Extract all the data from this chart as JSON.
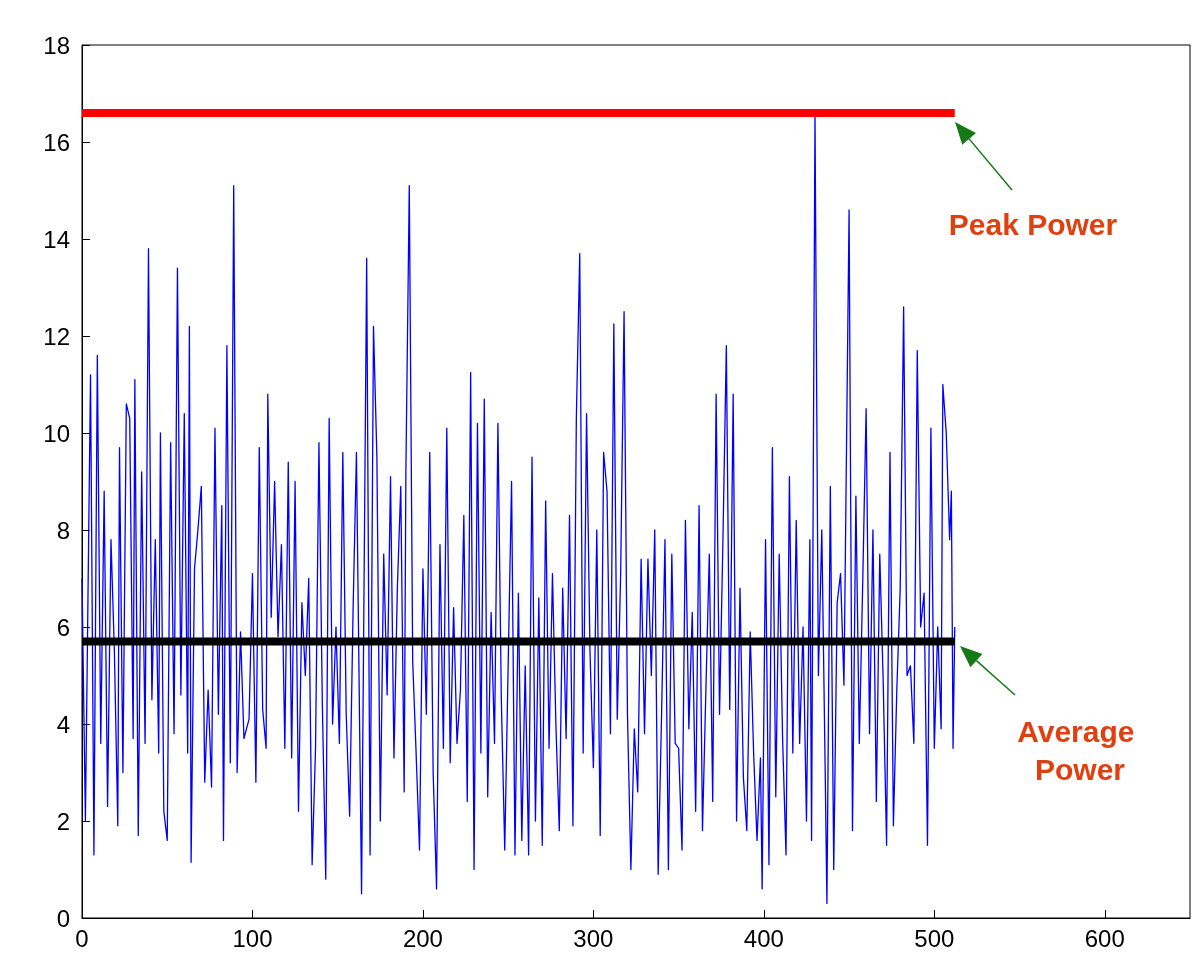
{
  "chart_data": {
    "type": "line",
    "marker": "none",
    "xlim": [
      0,
      650
    ],
    "xticks": [
      0,
      100,
      200,
      300,
      400,
      500,
      600
    ],
    "ylim": [
      0,
      18
    ],
    "yticks": [
      0,
      2,
      4,
      6,
      8,
      10,
      12,
      14,
      16,
      18
    ],
    "annotations": [
      "Peak Power",
      "Average Power"
    ],
    "series": [
      {
        "color": "#0000ff",
        "x": [
          0,
          2,
          5,
          7,
          9,
          11,
          13,
          15,
          17,
          19,
          21,
          22,
          24,
          26,
          28,
          30,
          31,
          33,
          35,
          37,
          39,
          41,
          43,
          45,
          46,
          48,
          50,
          52,
          54,
          56,
          58,
          60,
          62,
          63,
          64,
          66,
          68,
          70,
          72,
          74,
          76,
          78,
          80,
          82,
          83,
          85,
          87,
          89,
          91,
          93,
          95,
          98,
          100,
          102,
          104,
          106,
          108,
          109,
          111,
          113,
          115,
          117,
          119,
          121,
          123,
          125,
          127,
          129,
          131,
          133,
          135,
          137,
          139,
          141,
          143,
          145,
          147,
          149,
          151,
          153,
          155,
          157,
          159,
          161,
          164,
          167,
          169,
          171,
          173,
          175,
          177,
          179,
          181,
          183,
          185,
          187,
          189,
          190,
          192,
          194,
          196,
          198,
          200,
          202,
          204,
          206,
          208,
          210,
          212,
          214,
          216,
          218,
          220,
          222,
          224,
          226,
          228,
          230,
          232,
          234,
          236,
          238,
          240,
          242,
          244,
          246,
          248,
          250,
          252,
          254,
          256,
          258,
          260,
          262,
          264,
          266,
          268,
          270,
          272,
          274,
          276,
          278,
          280,
          282,
          284,
          286,
          288,
          290,
          292,
          294,
          296,
          298,
          300,
          302,
          304,
          306,
          308,
          310,
          312,
          314,
          316,
          318,
          320,
          322,
          324,
          326,
          328,
          330,
          332,
          334,
          336,
          338,
          340,
          342,
          344,
          346,
          348,
          350,
          352,
          354,
          356,
          358,
          360,
          362,
          364,
          366,
          368,
          370,
          372,
          374,
          376,
          378,
          380,
          382,
          384,
          386,
          388,
          390,
          392,
          394,
          396,
          398,
          399,
          401,
          403,
          405,
          407,
          409,
          411,
          413,
          415,
          417,
          419,
          421,
          423,
          425,
          427,
          428,
          430,
          432,
          434,
          436,
          437,
          439,
          441,
          443,
          445,
          447,
          450,
          452,
          454,
          456,
          458,
          460,
          462,
          464,
          466,
          468,
          470,
          472,
          474,
          476,
          478,
          480,
          482,
          484,
          486,
          488,
          490,
          492,
          494,
          496,
          498,
          500,
          502,
          504,
          505,
          507,
          509,
          510,
          511,
          512
        ],
        "values": [
          7.0,
          2.0,
          11.2,
          1.3,
          11.6,
          3.6,
          8.8,
          2.3,
          7.8,
          5.5,
          1.9,
          9.7,
          3.0,
          10.6,
          10.3,
          3.7,
          11.1,
          1.7,
          9.2,
          3.6,
          13.8,
          4.5,
          7.8,
          3.4,
          10.0,
          2.2,
          1.6,
          9.8,
          3.8,
          13.4,
          4.6,
          10.4,
          3.4,
          12.2,
          1.15,
          7.2,
          8.0,
          8.9,
          2.8,
          4.7,
          2.7,
          10.1,
          4.2,
          8.5,
          1.6,
          11.8,
          3.2,
          15.1,
          3.0,
          5.9,
          3.7,
          4.1,
          7.1,
          2.8,
          9.7,
          4.3,
          3.5,
          10.8,
          6.2,
          9.0,
          5.8,
          7.7,
          3.5,
          9.4,
          3.3,
          9.0,
          2.2,
          6.5,
          5.0,
          7.0,
          1.1,
          3.5,
          9.8,
          4.4,
          0.8,
          10.3,
          4.0,
          6.0,
          3.6,
          9.6,
          4.2,
          2.1,
          6.3,
          9.6,
          0.5,
          13.6,
          1.3,
          12.2,
          9.5,
          2.0,
          7.5,
          4.6,
          9.1,
          3.3,
          6.8,
          8.9,
          2.6,
          9.2,
          15.1,
          5.3,
          3.4,
          1.4,
          7.2,
          4.2,
          9.6,
          3.0,
          0.6,
          7.7,
          3.5,
          10.1,
          3.2,
          6.4,
          3.6,
          4.7,
          8.3,
          2.4,
          11.25,
          1.0,
          10.2,
          3.4,
          10.7,
          2.5,
          6.3,
          3.6,
          10.2,
          4.5,
          1.4,
          5.2,
          9.0,
          1.3,
          6.7,
          1.6,
          5.2,
          1.3,
          9.5,
          2.0,
          6.6,
          1.5,
          8.6,
          3.5,
          7.1,
          4.0,
          1.8,
          6.8,
          3.7,
          8.3,
          1.9,
          10.3,
          13.7,
          3.4,
          10.4,
          5.5,
          3.1,
          8.0,
          1.7,
          9.6,
          8.8,
          3.8,
          12.25,
          4.1,
          7.1,
          12.5,
          4.2,
          1.0,
          3.9,
          2.6,
          7.4,
          3.8,
          7.4,
          5.0,
          8.0,
          0.9,
          4.2,
          7.8,
          1.0,
          7.5,
          3.6,
          3.5,
          1.4,
          8.2,
          3.9,
          6.3,
          2.2,
          8.5,
          1.8,
          4.7,
          7.5,
          2.4,
          10.8,
          4.2,
          7.8,
          11.8,
          4.3,
          10.8,
          2.0,
          6.8,
          2.9,
          1.8,
          5.9,
          3.4,
          1.6,
          3.3,
          0.6,
          7.8,
          1.1,
          9.7,
          2.5,
          7.5,
          3.7,
          1.3,
          9.1,
          3.4,
          8.2,
          3.6,
          6.0,
          2.0,
          7.8,
          1.6,
          16.6,
          5.0,
          8.0,
          3.0,
          0.3,
          8.9,
          1.0,
          6.5,
          7.1,
          4.8,
          14.6,
          1.8,
          8.7,
          3.6,
          6.9,
          10.5,
          3.8,
          8.0,
          2.4,
          7.5,
          4.9,
          1.5,
          9.6,
          1.9,
          4.7,
          6.8,
          12.6,
          5.0,
          5.2,
          3.6,
          11.7,
          6.0,
          6.7,
          1.5,
          10.1,
          3.5,
          6.0,
          3.9,
          11.0,
          10.0,
          7.8,
          8.8,
          3.5,
          6.0
        ]
      },
      {
        "color": "#ff0000",
        "x": [
          0,
          512
        ],
        "values": [
          16.6,
          16.6
        ]
      },
      {
        "color": "#000000",
        "x": [
          0,
          512
        ],
        "values": [
          5.7,
          5.7
        ]
      }
    ]
  }
}
